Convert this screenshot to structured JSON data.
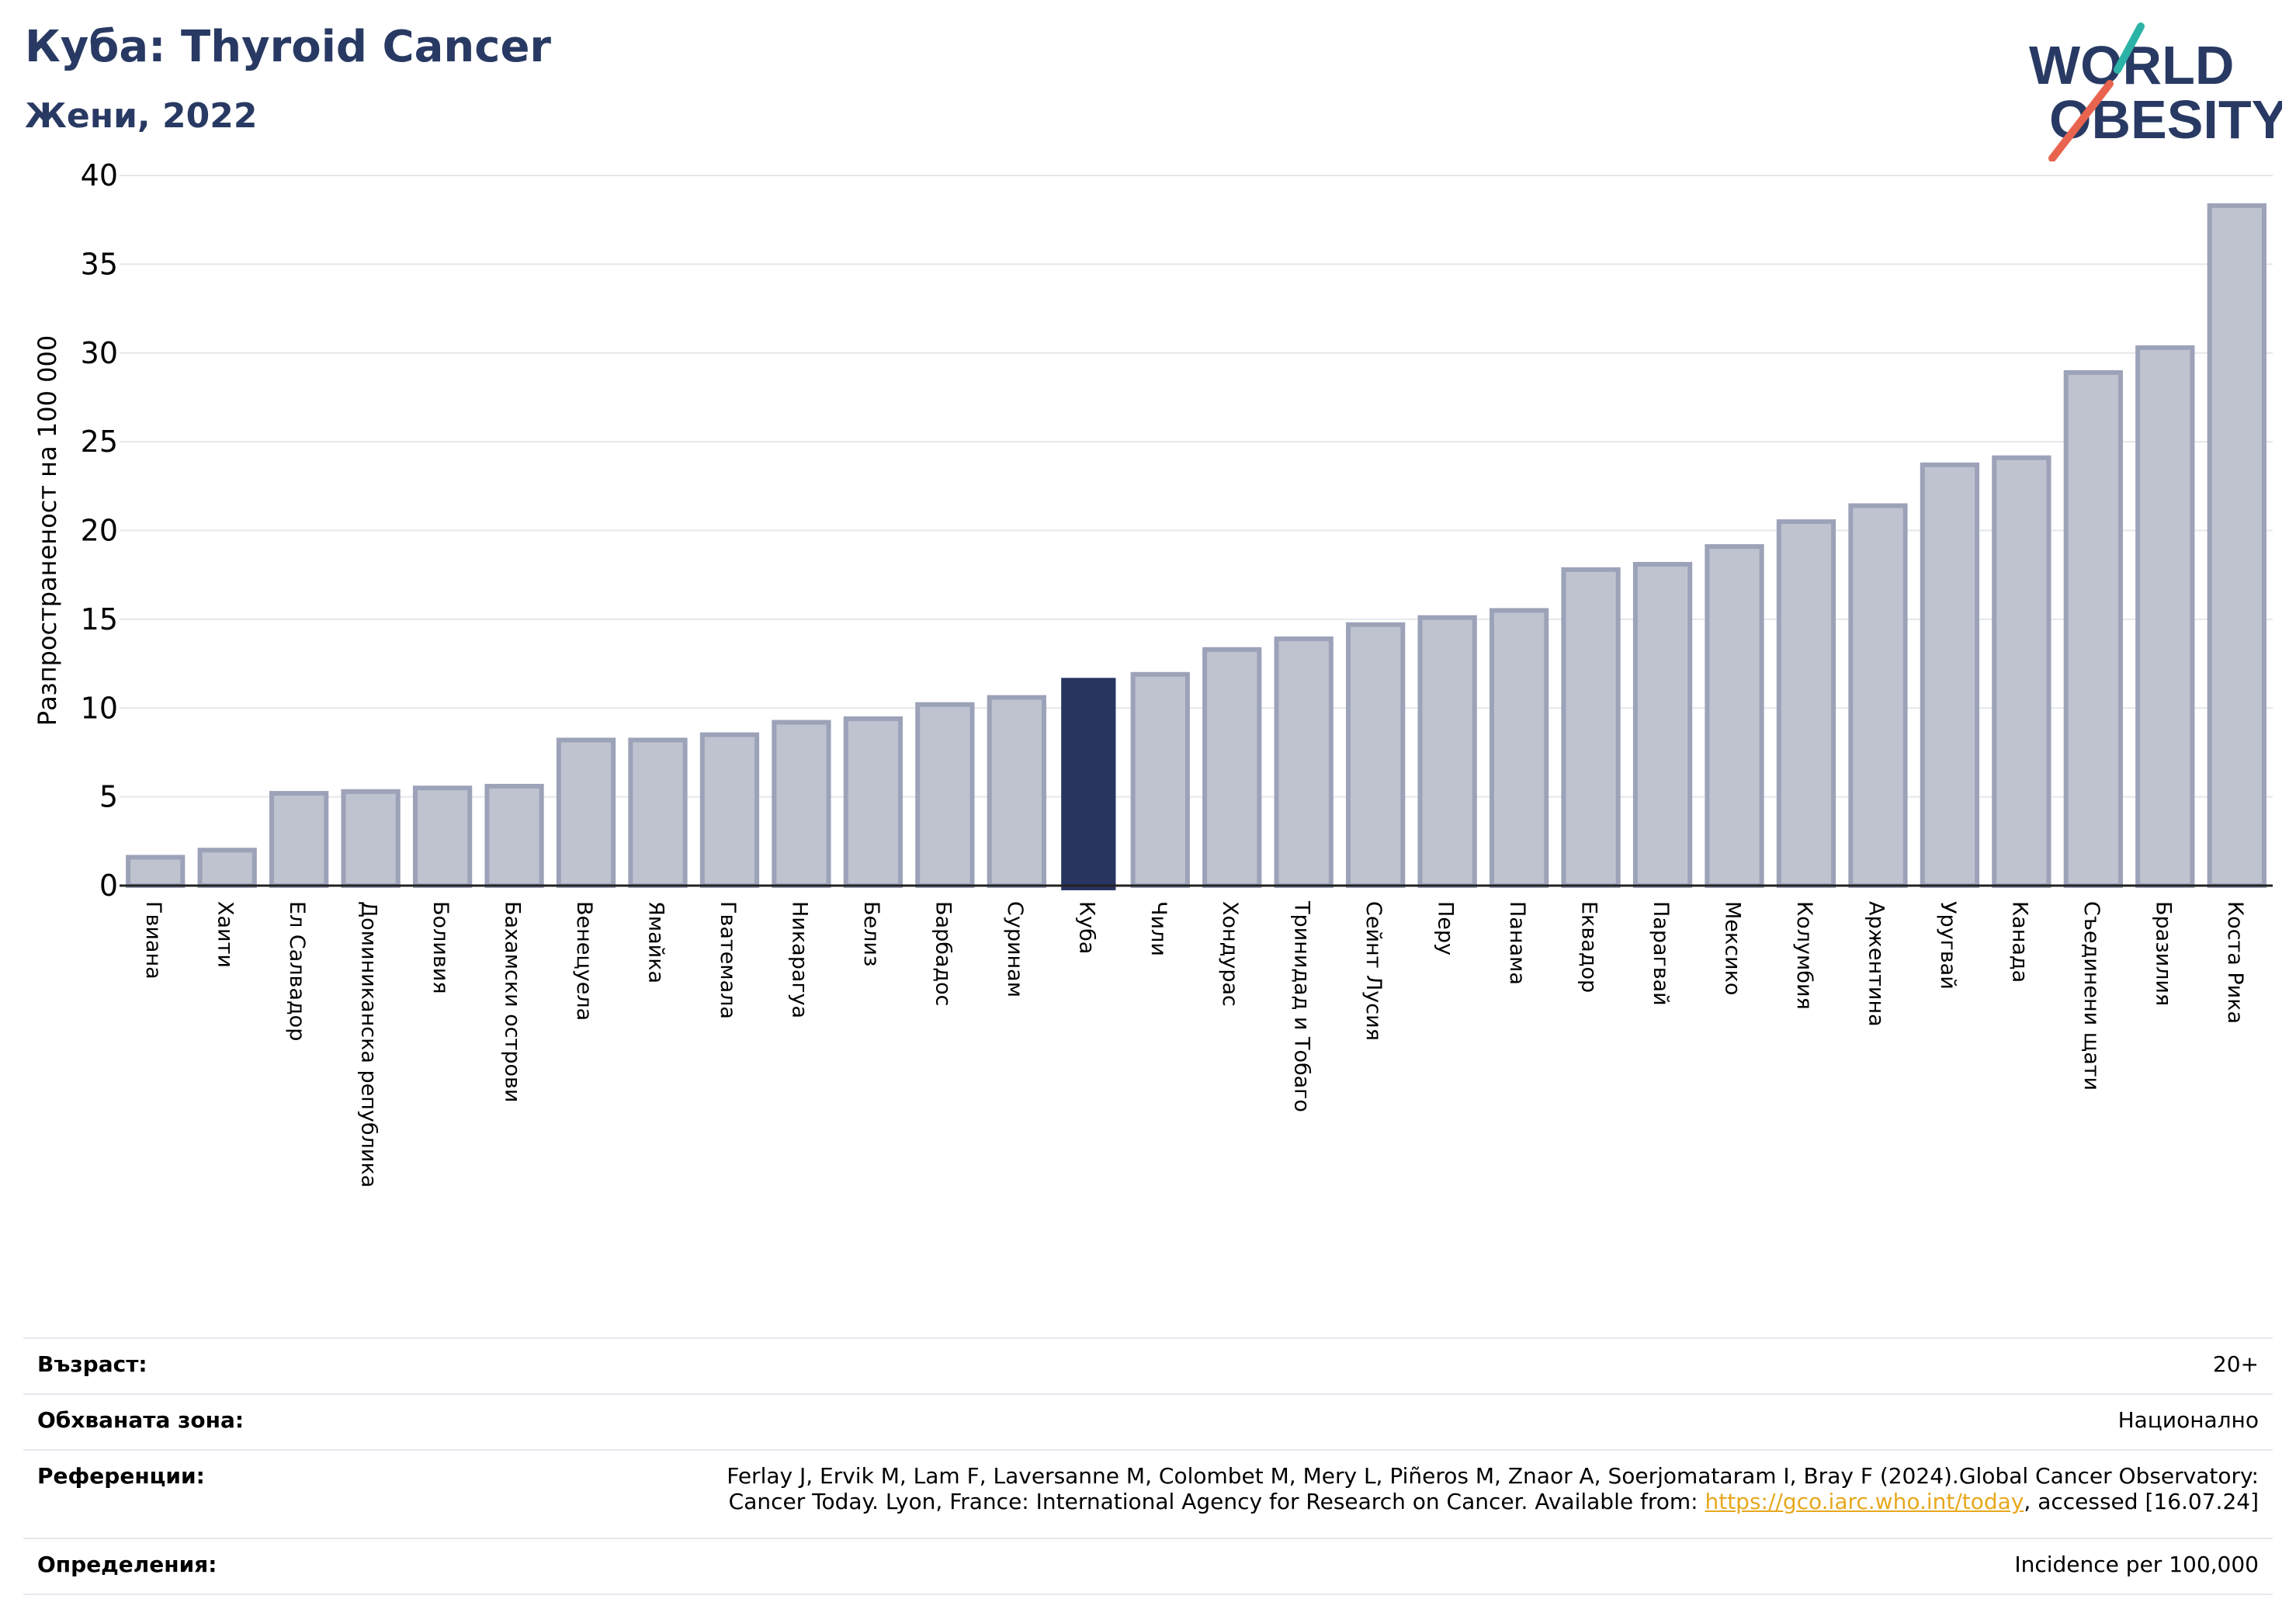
{
  "header": {
    "title": "Куба: Thyroid Cancer",
    "subtitle": "Жени, 2022",
    "logo_line1": "WORLD",
    "logo_line2": "OBESITY"
  },
  "colors": {
    "title": "#283a63",
    "bar_default": "#bfc3d0",
    "bar_border": "#9ca2b8",
    "bar_highlight": "#283561",
    "link": "#e7a81d",
    "logo_teal": "#2cb3a7",
    "logo_coral": "#e8644f"
  },
  "chart_data": {
    "type": "bar",
    "title": "Куба: Thyroid Cancer",
    "subtitle": "Жени, 2022",
    "ylabel": "Разпространеност  на 100 000",
    "xlabel": "",
    "ylim": [
      0,
      40
    ],
    "yticks": [
      0,
      5,
      10,
      15,
      20,
      25,
      30,
      35,
      40
    ],
    "grid": true,
    "highlight": "Куба",
    "categories": [
      "Гвиана",
      "Хаити",
      "Ел Салвадор",
      "Доминиканска република",
      "Боливия",
      "Бахамски острови",
      "Венецуела",
      "Ямайка",
      "Гватемала",
      "Никарагуа",
      "Белиз",
      "Барбадос",
      "Суринам",
      "Куба",
      "Чили",
      "Хондурас",
      "Тринидад и Тобаго",
      "Сейнт Лусия",
      "Перу",
      "Панама",
      "Еквадор",
      "Парагвай",
      "Мексико",
      "Колумбия",
      "Аржентина",
      "Уругвай",
      "Канада",
      "Съединени щати",
      "Бразилия",
      "Коста Рика"
    ],
    "values": [
      1.6,
      2.0,
      5.2,
      5.3,
      5.5,
      5.6,
      8.2,
      8.2,
      8.5,
      9.2,
      9.4,
      10.2,
      10.6,
      11.7,
      11.9,
      13.3,
      13.9,
      14.7,
      15.1,
      15.5,
      17.8,
      18.1,
      19.1,
      20.5,
      21.4,
      23.7,
      24.1,
      28.9,
      30.3,
      38.3
    ]
  },
  "info": {
    "age_label": "Възраст:",
    "age_value": "20+",
    "zone_label": "Обхваната зона:",
    "zone_value": "Национално",
    "ref_label": "Референции:",
    "ref_text_1": "Ferlay J, Ervik M, Lam F, Laversanne M, Colombet M, Mery L, Piñeros M, Znaor A, Soerjomataram I, Bray F (2024).Global Cancer Observatory:",
    "ref_text_2": "Cancer Today. Lyon, France: International Agency for Research on Cancer. Available from: ",
    "ref_link": "https://gco.iarc.who.int/today",
    "ref_text_3": ", accessed [16.07.24]",
    "def_label": "Определения:",
    "def_value": "Incidence per 100,000"
  }
}
